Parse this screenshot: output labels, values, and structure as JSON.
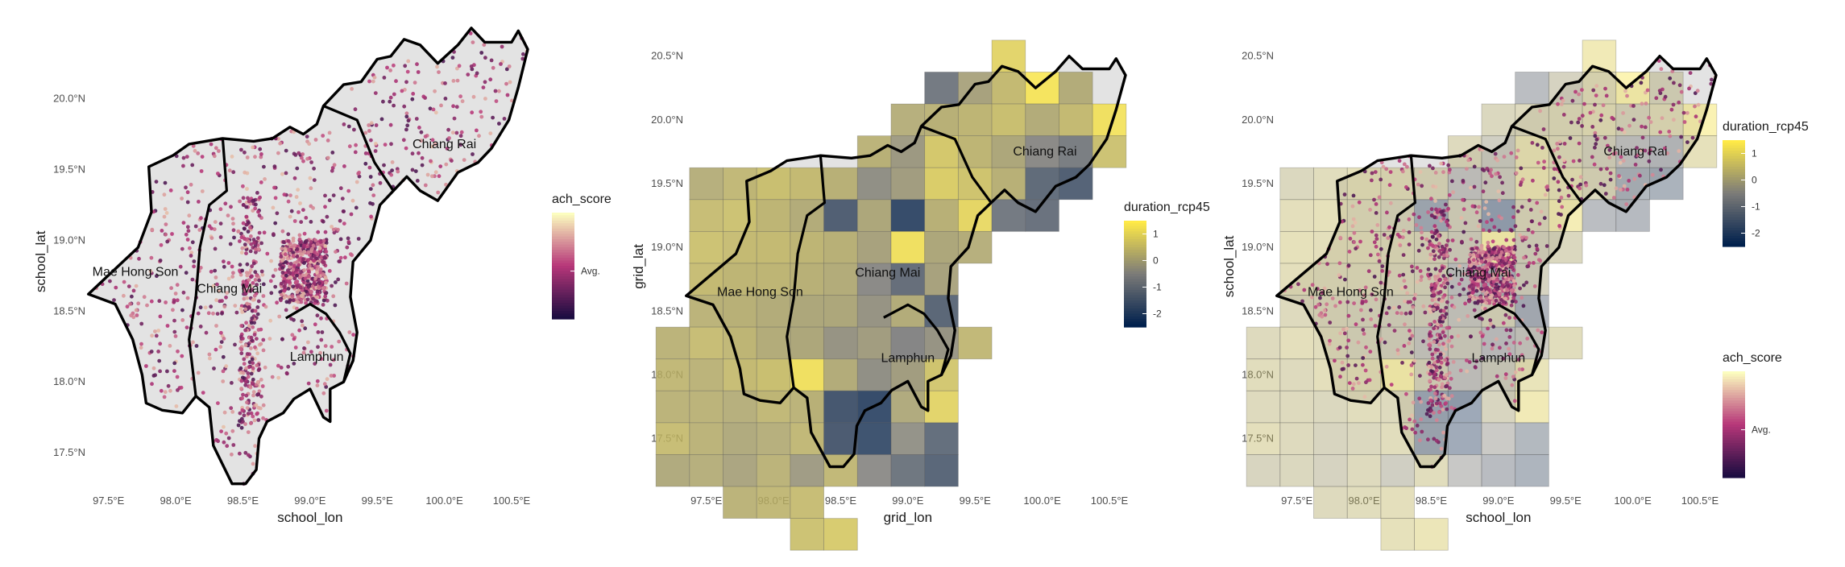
{
  "map_panels": [
    {
      "id": "schools",
      "x_label": "school_lon",
      "y_label": "school_lat",
      "x_ticks": [
        "97.5°E",
        "98.0°E",
        "98.5°E",
        "99.0°E",
        "99.5°E",
        "100.0°E",
        "100.5°E"
      ],
      "y_ticks": [
        "17.5°N",
        "18.0°N",
        "18.5°N",
        "19.0°N",
        "19.5°N",
        "20.0°N"
      ],
      "show_grid": false,
      "show_points": true,
      "region_labels": [
        "Chiang Rai",
        "Mae Hong Son",
        "Chiang Mai",
        "Lamphun"
      ],
      "legends": [
        {
          "title": "ach_score",
          "scale": "magma",
          "tick_labels": [
            "Avg."
          ]
        }
      ]
    },
    {
      "id": "grid",
      "x_label": "grid_lon",
      "y_label": "grid_lat",
      "x_ticks": [
        "97.5°E",
        "98.0°E",
        "98.5°E",
        "99.0°E",
        "99.5°E",
        "100.0°E",
        "100.5°E"
      ],
      "y_ticks": [
        "17.5°N",
        "18.0°N",
        "18.5°N",
        "19.0°N",
        "19.5°N",
        "20.0°N",
        "20.5°N"
      ],
      "show_grid": true,
      "grid_opacity": 0.85,
      "show_points": false,
      "region_labels": [
        "Chiang Rai",
        "Chiang Mai",
        "Mae Hong Son",
        "Lamphun"
      ],
      "legends": [
        {
          "title": "duration_rcp45",
          "scale": "cividis",
          "tick_labels": [
            "1",
            "0",
            "-1",
            "-2"
          ]
        }
      ]
    },
    {
      "id": "combined",
      "x_label": "school_lon",
      "y_label": "school_lat",
      "x_ticks": [
        "97.5°E",
        "98.0°E",
        "98.5°E",
        "99.0°E",
        "99.5°E",
        "100.0°E",
        "100.5°E"
      ],
      "y_ticks": [
        "17.5°N",
        "18.0°N",
        "18.5°N",
        "19.0°N",
        "19.5°N",
        "20.0°N",
        "20.5°N"
      ],
      "show_grid": true,
      "grid_opacity": 0.42,
      "show_points": true,
      "region_labels": [
        "Chiang Rai",
        "Chiang Mai",
        "Mae Hong Son",
        "Lamphun"
      ],
      "legends": [
        {
          "title": "duration_rcp45",
          "scale": "cividis",
          "tick_labels": [
            "1",
            "0",
            "-1",
            "-2"
          ]
        },
        {
          "title": "ach_score",
          "scale": "magma",
          "tick_labels": [
            "Avg."
          ]
        }
      ]
    }
  ],
  "colors": {
    "land_fill": "#e3e3e3",
    "border": "#000000",
    "magma_low": "#1b0c41",
    "magma_mid": "#b73779",
    "magma_high": "#fcfdbf",
    "cividis_low": "#00204d",
    "cividis_mid": "#7c7b78",
    "cividis_high": "#ffea46"
  }
}
